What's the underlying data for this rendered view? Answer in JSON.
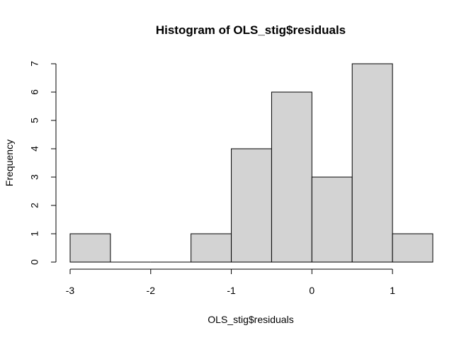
{
  "chart_data": {
    "type": "bar",
    "title": "Histogram of OLS_stig$residuals",
    "xlabel": "OLS_stig$residuals",
    "ylabel": "Frequency",
    "bins": [
      {
        "start": -3.0,
        "end": -2.5,
        "count": 1
      },
      {
        "start": -2.5,
        "end": -2.0,
        "count": 0
      },
      {
        "start": -2.0,
        "end": -1.5,
        "count": 0
      },
      {
        "start": -1.5,
        "end": -1.0,
        "count": 1
      },
      {
        "start": -1.0,
        "end": -0.5,
        "count": 4
      },
      {
        "start": -0.5,
        "end": 0.0,
        "count": 6
      },
      {
        "start": 0.0,
        "end": 0.5,
        "count": 3
      },
      {
        "start": 0.5,
        "end": 1.0,
        "count": 7
      },
      {
        "start": 1.0,
        "end": 1.5,
        "count": 1
      }
    ],
    "xlim": [
      -3.0,
      1.5
    ],
    "ylim": [
      0,
      7
    ],
    "x_ticks": [
      -3,
      -2,
      -1,
      0,
      1
    ],
    "y_ticks": [
      0,
      1,
      2,
      3,
      4,
      5,
      6,
      7
    ],
    "grid": false,
    "bar_color": "#d3d3d3",
    "bar_edge_color": "#000000"
  }
}
